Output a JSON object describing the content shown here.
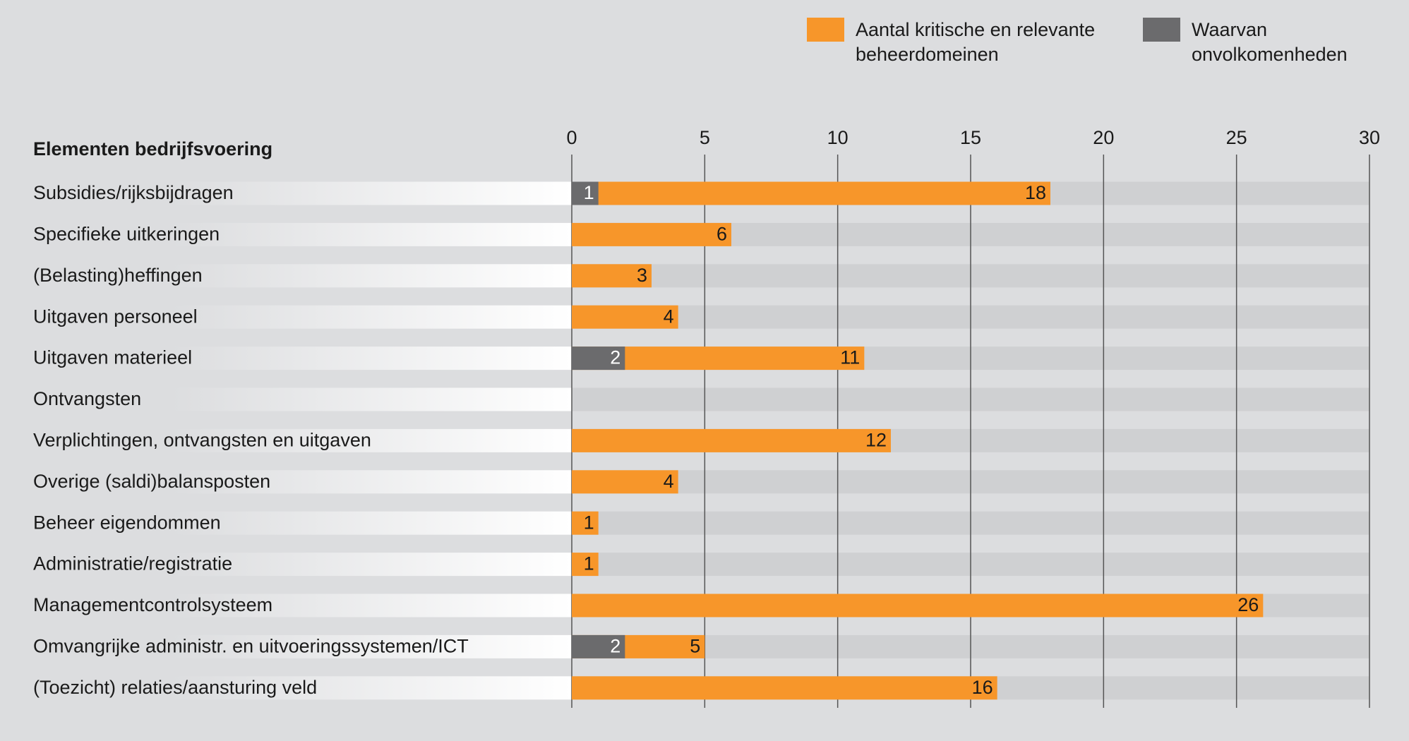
{
  "chart_data": {
    "type": "bar",
    "orientation": "horizontal",
    "ylabel": "Elementen bedrijfsvoering",
    "categories": [
      "Subsidies/rijksbijdragen",
      "Specifieke uitkeringen",
      "(Belasting)heffingen",
      "Uitgaven personeel",
      "Uitgaven materieel",
      "Ontvangsten",
      "Verplichtingen, ontvangsten en uitgaven",
      "Overige (saldi)balansposten",
      "Beheer eigendommen",
      "Administratie/registratie",
      "Managementcontrolsysteem",
      "Omvangrijke administr. en uitvoeringssystemen/ICT",
      "(Toezicht) relaties/aansturing veld"
    ],
    "series": [
      {
        "name": "Aantal kritische en relevante beheerdomeinen",
        "color": "#f7962a",
        "values": [
          18,
          6,
          3,
          4,
          11,
          null,
          12,
          4,
          1,
          1,
          26,
          5,
          16
        ]
      },
      {
        "name": "Waarvan onvolkomenheden",
        "color": "#6b6b6d",
        "values": [
          1,
          null,
          null,
          null,
          2,
          null,
          null,
          null,
          null,
          null,
          null,
          2,
          null
        ]
      }
    ],
    "xlim": [
      0,
      30
    ],
    "xticks": [
      0,
      5,
      10,
      15,
      20,
      25,
      30
    ],
    "grid": true
  }
}
